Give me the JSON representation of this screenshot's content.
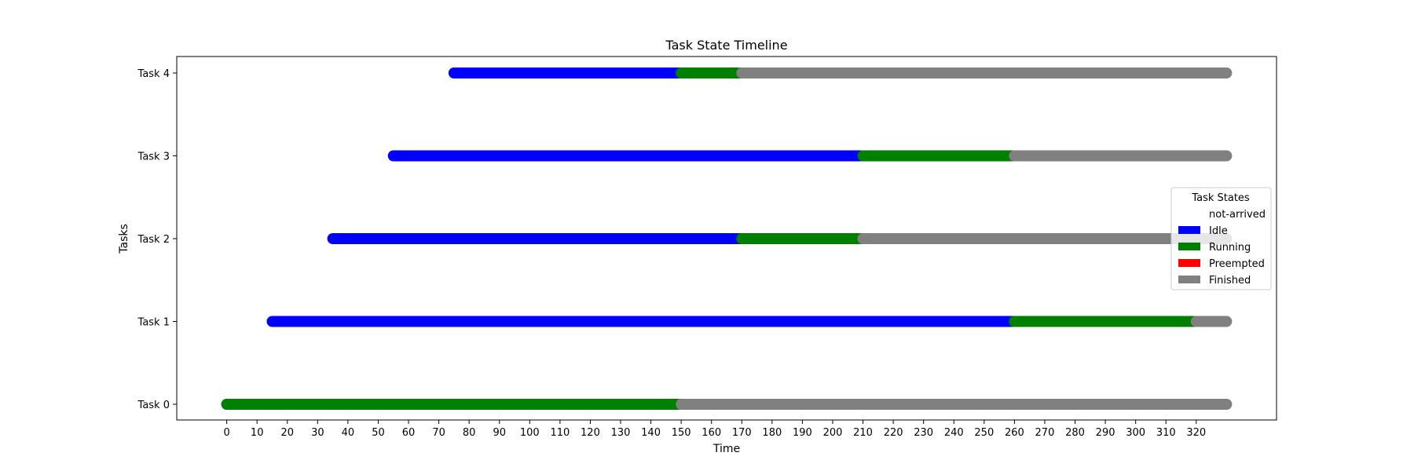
{
  "chart_data": {
    "type": "timeline",
    "title": "Task State Timeline",
    "xlabel": "Time",
    "ylabel": "Tasks",
    "xlim": [
      -16.5,
      346.5
    ],
    "x_ticks": [
      0,
      10,
      20,
      30,
      40,
      50,
      60,
      70,
      80,
      90,
      100,
      110,
      120,
      130,
      140,
      150,
      160,
      170,
      180,
      190,
      200,
      210,
      220,
      230,
      240,
      250,
      260,
      270,
      280,
      290,
      300,
      310,
      320
    ],
    "tasks": [
      "Task 0",
      "Task 1",
      "Task 2",
      "Task 3",
      "Task 4"
    ],
    "states": [
      {
        "name": "not-arrived",
        "color": "#ffffff"
      },
      {
        "name": "Idle",
        "color": "#0000ff"
      },
      {
        "name": "Running",
        "color": "#008000"
      },
      {
        "name": "Preempted",
        "color": "#ff0000"
      },
      {
        "name": "Finished",
        "color": "#808080"
      }
    ],
    "legend": {
      "title": "Task States",
      "placement": "center-right"
    },
    "segments": [
      {
        "task": "Task 0",
        "state": "Idle",
        "start": 0,
        "end": 0
      },
      {
        "task": "Task 0",
        "state": "Running",
        "start": 0,
        "end": 150
      },
      {
        "task": "Task 0",
        "state": "Finished",
        "start": 150,
        "end": 330
      },
      {
        "task": "Task 1",
        "state": "Idle",
        "start": 15,
        "end": 260
      },
      {
        "task": "Task 1",
        "state": "Running",
        "start": 260,
        "end": 320
      },
      {
        "task": "Task 1",
        "state": "Finished",
        "start": 320,
        "end": 330
      },
      {
        "task": "Task 2",
        "state": "Idle",
        "start": 35,
        "end": 170
      },
      {
        "task": "Task 2",
        "state": "Running",
        "start": 170,
        "end": 210
      },
      {
        "task": "Task 2",
        "state": "Finished",
        "start": 210,
        "end": 330
      },
      {
        "task": "Task 3",
        "state": "Idle",
        "start": 55,
        "end": 210
      },
      {
        "task": "Task 3",
        "state": "Running",
        "start": 210,
        "end": 260
      },
      {
        "task": "Task 3",
        "state": "Finished",
        "start": 260,
        "end": 330
      },
      {
        "task": "Task 4",
        "state": "Idle",
        "start": 75,
        "end": 150
      },
      {
        "task": "Task 4",
        "state": "Running",
        "start": 150,
        "end": 170
      },
      {
        "task": "Task 4",
        "state": "Finished",
        "start": 170,
        "end": 330
      }
    ]
  }
}
